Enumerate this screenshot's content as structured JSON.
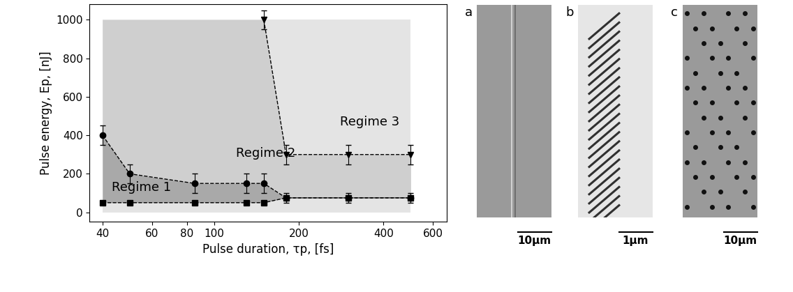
{
  "chart_data": {
    "type": "scatter",
    "xlabel": "Pulse duration, τp, [fs]",
    "ylabel": "Pulse energy, Ep, [nJ]",
    "log": "x",
    "xlim": [
      36,
      670
    ],
    "ylim": [
      -50,
      1080
    ],
    "xticks": [
      40,
      60,
      80,
      100,
      200,
      400,
      600
    ],
    "yticks": [
      0,
      200,
      400,
      600,
      800,
      1000
    ],
    "series": [
      {
        "marker": "square",
        "line_style": "dashed",
        "color": "#000000",
        "x": [
          40,
          50,
          85,
          130,
          150,
          180,
          300,
          500
        ],
        "values": [
          50,
          50,
          50,
          50,
          50,
          75,
          75,
          75
        ]
      },
      {
        "marker": "circle",
        "line_style": "dashed",
        "color": "#000000",
        "x": [
          40,
          50,
          85,
          130,
          150,
          180,
          300,
          500
        ],
        "values": [
          400,
          200,
          150,
          150,
          150,
          75,
          75,
          75
        ],
        "errors": [
          50,
          50,
          50,
          50,
          50,
          25,
          25,
          25
        ]
      },
      {
        "marker": "triangle",
        "line_style": "dashed",
        "color": "#000000",
        "x": [
          150,
          180,
          300,
          500
        ],
        "values": [
          1000,
          300,
          300,
          300
        ],
        "errors": [
          50,
          50,
          50,
          50
        ]
      }
    ],
    "annotations": [
      {
        "text": "Regime 1",
        "x": 55,
        "y": 130
      },
      {
        "text": "Regime 2",
        "x": 152,
        "y": 306
      },
      {
        "text": "Regime 3",
        "x": 358,
        "y": 468
      }
    ]
  },
  "panels": [
    {
      "label": "a",
      "scale_bar": "10μm"
    },
    {
      "label": "b",
      "scale_bar": "1μm"
    },
    {
      "label": "c",
      "scale_bar": "10μm"
    }
  ]
}
